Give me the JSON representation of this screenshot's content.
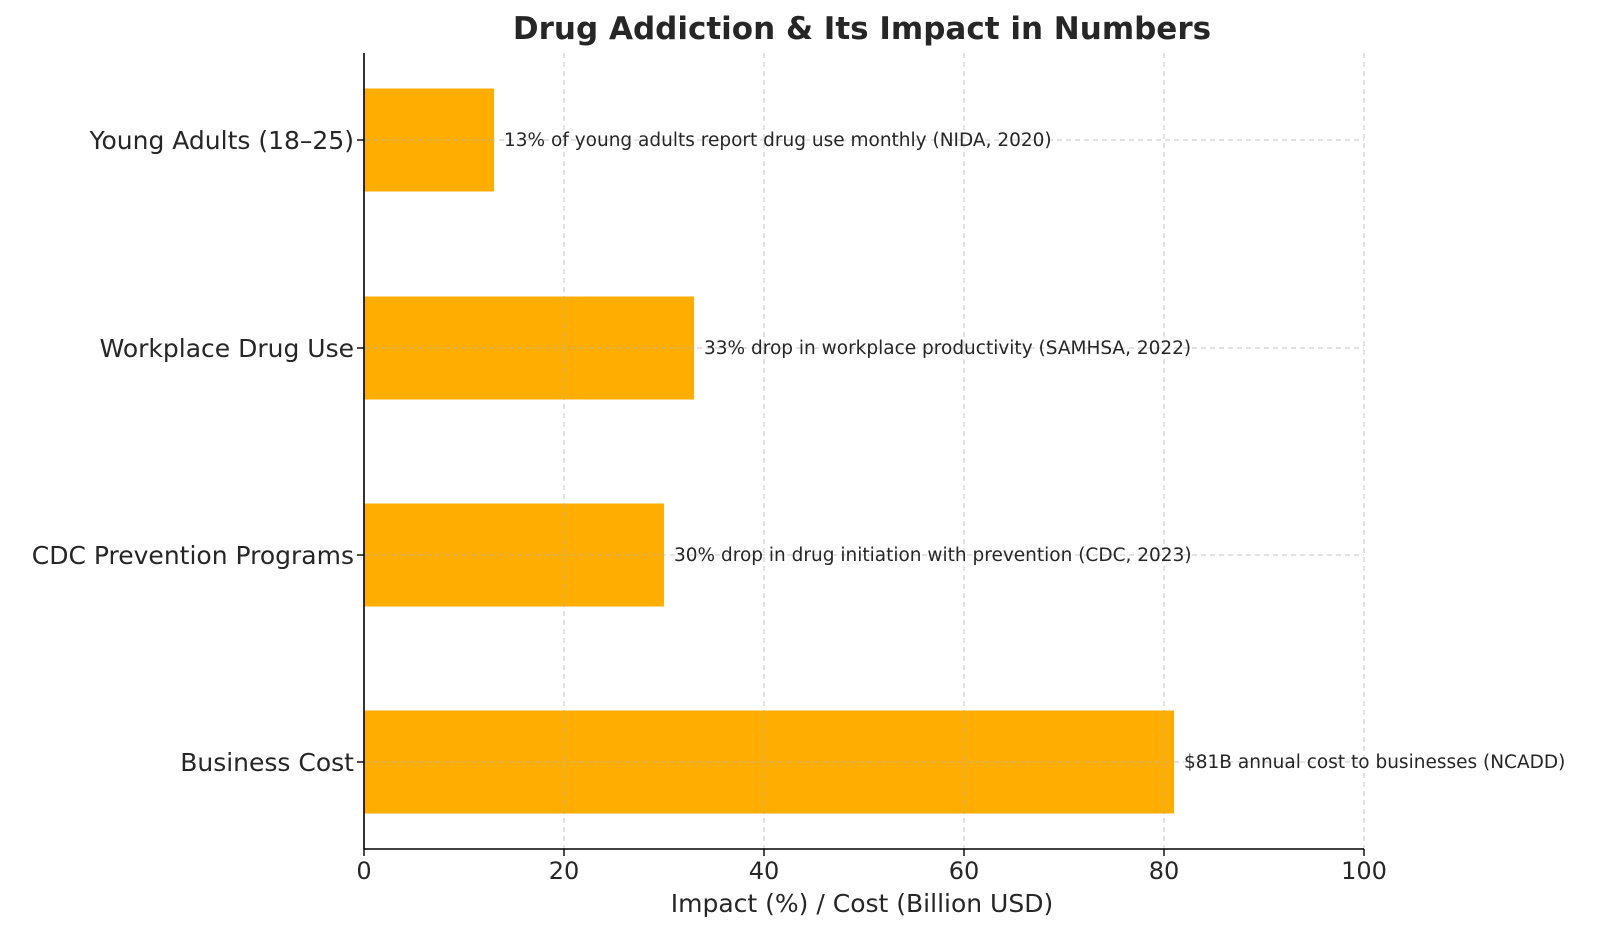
{
  "chart_data": {
    "type": "bar",
    "orientation": "horizontal",
    "title": "Drug Addiction & Its Impact in Numbers",
    "xlabel": "Impact (%) / Cost (Billion USD)",
    "ylabel": "",
    "xlim": [
      0,
      100
    ],
    "xticks": [
      0,
      20,
      40,
      60,
      80,
      100
    ],
    "grid": true,
    "bar_color": "#FFAE00",
    "categories": [
      "Young Adults (18–25)",
      "Workplace Drug Use",
      "CDC Prevention Programs",
      "Business Cost"
    ],
    "values": [
      13,
      33,
      30,
      81
    ],
    "annotations": [
      "13% of young adults report drug use monthly (NIDA, 2020)",
      "33% drop in workplace productivity (SAMHSA, 2022)",
      "30% drop in drug initiation with prevention (CDC, 2023)",
      "$81B annual cost to businesses (NCADD)"
    ]
  }
}
